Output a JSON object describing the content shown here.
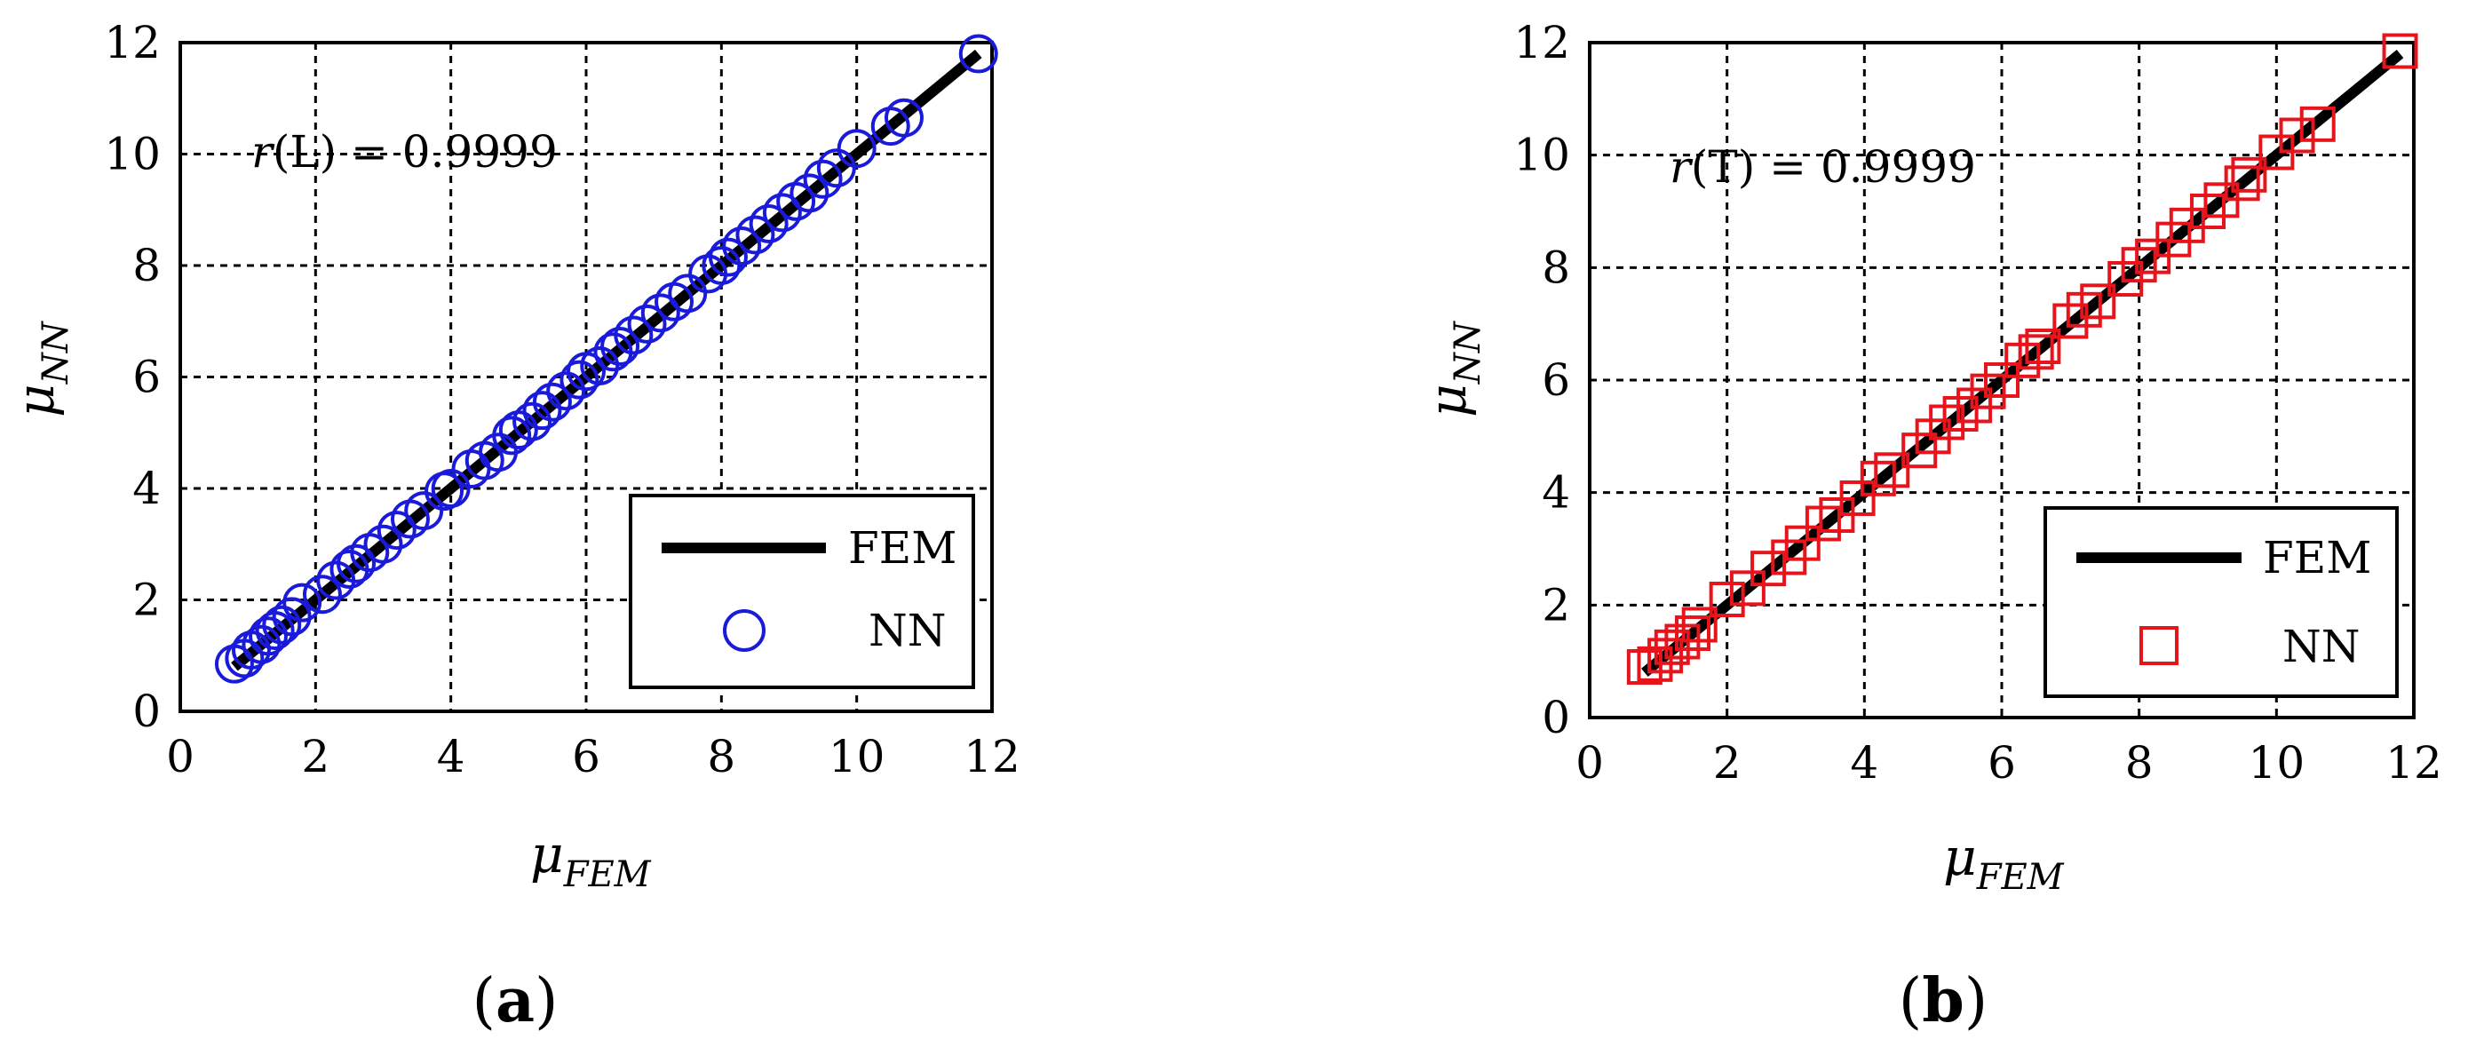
{
  "chart_data": [
    {
      "type": "scatter",
      "panel_label": "a",
      "xlabel": {
        "symbol": "μ",
        "subscript": "FEM"
      },
      "ylabel": {
        "symbol": "μ",
        "subscript": "NN"
      },
      "xlim": [
        0,
        12
      ],
      "ylim": [
        0,
        12
      ],
      "xticks": [
        "0",
        "2",
        "4",
        "6",
        "8",
        "10",
        "12"
      ],
      "yticks": [
        "0",
        "2",
        "4",
        "6",
        "8",
        "10",
        "12"
      ],
      "grid": true,
      "annotation": {
        "prefix": "r",
        "text": "(L) = 0.9999"
      },
      "legend": {
        "placement": "bottom-right",
        "entries": [
          "FEM",
          "NN"
        ]
      },
      "series": [
        {
          "name": "FEM",
          "kind": "line",
          "color": "#000000",
          "x": [
            0.8,
            11.8
          ],
          "y": [
            0.8,
            11.8
          ]
        },
        {
          "name": "NN",
          "kind": "markers",
          "marker": "circle",
          "color": "#1a1adb",
          "x": [
            0.8,
            0.95,
            1.05,
            1.2,
            1.3,
            1.4,
            1.5,
            1.65,
            1.8,
            2.1,
            2.3,
            2.5,
            2.6,
            2.8,
            3.0,
            3.2,
            3.4,
            3.6,
            3.9,
            4.0,
            4.3,
            4.5,
            4.7,
            4.9,
            5.0,
            5.2,
            5.35,
            5.5,
            5.7,
            5.9,
            6.0,
            6.2,
            6.4,
            6.5,
            6.7,
            6.9,
            7.1,
            7.3,
            7.5,
            7.8,
            8.0,
            8.1,
            8.3,
            8.5,
            8.7,
            8.9,
            9.1,
            9.3,
            9.5,
            9.7,
            10.0,
            10.5,
            10.7,
            11.8
          ],
          "y": [
            0.85,
            0.95,
            1.1,
            1.2,
            1.35,
            1.45,
            1.55,
            1.7,
            1.95,
            2.1,
            2.35,
            2.55,
            2.65,
            2.85,
            3.0,
            3.25,
            3.45,
            3.6,
            3.95,
            4.0,
            4.35,
            4.5,
            4.65,
            4.95,
            5.05,
            5.2,
            5.4,
            5.55,
            5.75,
            5.95,
            6.1,
            6.2,
            6.45,
            6.55,
            6.75,
            6.95,
            7.15,
            7.35,
            7.5,
            7.85,
            8.0,
            8.15,
            8.35,
            8.55,
            8.75,
            8.95,
            9.15,
            9.3,
            9.55,
            9.75,
            10.1,
            10.5,
            10.65,
            11.8
          ]
        }
      ]
    },
    {
      "type": "scatter",
      "panel_label": "b",
      "xlabel": {
        "symbol": "μ",
        "subscript": "FEM"
      },
      "ylabel": {
        "symbol": "μ",
        "subscript": "NN"
      },
      "xlim": [
        0,
        12
      ],
      "ylim": [
        0,
        12
      ],
      "xticks": [
        "0",
        "2",
        "4",
        "6",
        "8",
        "10",
        "12"
      ],
      "yticks": [
        "0",
        "2",
        "4",
        "6",
        "8",
        "10",
        "12"
      ],
      "grid": true,
      "annotation": {
        "prefix": "r",
        "text": "(T) = 0.9999"
      },
      "legend": {
        "placement": "bottom-right",
        "entries": [
          "FEM",
          "NN"
        ]
      },
      "series": [
        {
          "name": "FEM",
          "kind": "line",
          "color": "#000000",
          "x": [
            0.8,
            11.8
          ],
          "y": [
            0.8,
            11.8
          ]
        },
        {
          "name": "NN",
          "kind": "markers",
          "marker": "square",
          "color": "#e8141c",
          "x": [
            0.8,
            0.95,
            1.1,
            1.2,
            1.35,
            1.5,
            1.6,
            2.0,
            2.3,
            2.6,
            2.9,
            3.1,
            3.4,
            3.6,
            3.9,
            4.2,
            4.4,
            4.8,
            5.0,
            5.2,
            5.4,
            5.6,
            5.8,
            6.0,
            6.3,
            6.5,
            6.6,
            7.0,
            7.2,
            7.4,
            7.8,
            8.0,
            8.2,
            8.5,
            8.7,
            9.0,
            9.2,
            9.5,
            9.6,
            10.0,
            10.3,
            10.6,
            11.8
          ],
          "y": [
            0.9,
            0.95,
            1.1,
            1.25,
            1.35,
            1.5,
            1.65,
            2.1,
            2.3,
            2.65,
            2.85,
            3.1,
            3.45,
            3.6,
            3.9,
            4.25,
            4.4,
            4.75,
            5.0,
            5.25,
            5.4,
            5.55,
            5.8,
            6.0,
            6.35,
            6.5,
            6.6,
            7.05,
            7.25,
            7.4,
            7.8,
            8.05,
            8.2,
            8.5,
            8.75,
            9.0,
            9.2,
            9.5,
            9.65,
            10.05,
            10.35,
            10.55,
            11.85
          ]
        }
      ]
    }
  ]
}
